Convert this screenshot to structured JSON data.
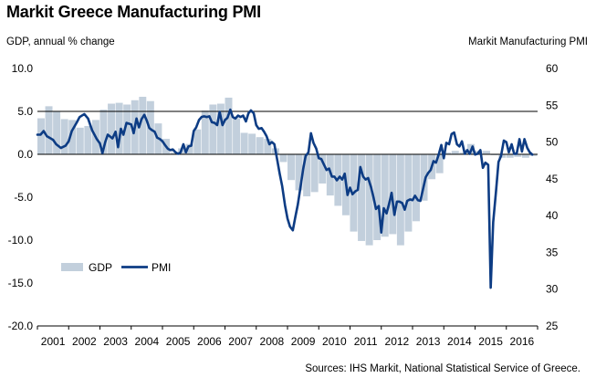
{
  "chart_data": {
    "type": "bar+line",
    "title": "Markit Greece Manufacturing PMI",
    "ylabel_left": "GDP, annual % change",
    "ylabel_right": "Markit Manufacturing PMI",
    "source": "Sources: IHS Markit, National Statistical Service of Greece.",
    "x_range": [
      2001.0,
      2017.0
    ],
    "x_ticks": [
      "2001",
      "2002",
      "2003",
      "2004",
      "2005",
      "2006",
      "2007",
      "2008",
      "2009",
      "2010",
      "2011",
      "2012",
      "2013",
      "2014",
      "2015",
      "2016"
    ],
    "ylim_left": [
      -20,
      10
    ],
    "yticks_left": [
      "10.0",
      "5.0",
      "0.0",
      "-5.0",
      "-10.0",
      "-15.0",
      "-20.0"
    ],
    "ylim_right": [
      25,
      60
    ],
    "yticks_right": [
      "60",
      "55",
      "50",
      "45",
      "40",
      "35",
      "30",
      "25"
    ],
    "grid": "horizontal at GDP 5.0 and 0.0",
    "legend_position": "lower-left",
    "colors": {
      "gdp": "#c2cfdc",
      "pmi": "#0d3c84",
      "grid": "#000000"
    },
    "series": [
      {
        "name": "GDP",
        "style": "bars",
        "axis": "left",
        "points": [
          [
            2001.0,
            4.2
          ],
          [
            2001.25,
            5.6
          ],
          [
            2001.5,
            5.0
          ],
          [
            2001.75,
            4.1
          ],
          [
            2002.0,
            4.0
          ],
          [
            2002.25,
            3.1
          ],
          [
            2002.5,
            3.3
          ],
          [
            2002.75,
            4.0
          ],
          [
            2003.0,
            5.2
          ],
          [
            2003.25,
            5.9
          ],
          [
            2003.5,
            6.0
          ],
          [
            2003.75,
            5.8
          ],
          [
            2004.0,
            6.3
          ],
          [
            2004.25,
            6.7
          ],
          [
            2004.5,
            6.2
          ],
          [
            2004.75,
            3.6
          ],
          [
            2005.0,
            1.8
          ],
          [
            2005.25,
            0.2
          ],
          [
            2005.5,
            0.7
          ],
          [
            2005.75,
            1.2
          ],
          [
            2006.0,
            2.9
          ],
          [
            2006.25,
            5.1
          ],
          [
            2006.5,
            5.8
          ],
          [
            2006.75,
            5.9
          ],
          [
            2007.0,
            6.6
          ],
          [
            2007.25,
            4.2
          ],
          [
            2007.5,
            2.5
          ],
          [
            2007.75,
            2.4
          ],
          [
            2008.0,
            2.0
          ],
          [
            2008.25,
            1.8
          ],
          [
            2008.5,
            0.7
          ],
          [
            2008.75,
            -0.9
          ],
          [
            2009.0,
            -3.0
          ],
          [
            2009.25,
            -4.2
          ],
          [
            2009.5,
            -4.9
          ],
          [
            2009.75,
            -4.4
          ],
          [
            2010.0,
            -3.4
          ],
          [
            2010.25,
            -4.8
          ],
          [
            2010.5,
            -6.0
          ],
          [
            2010.75,
            -7.1
          ],
          [
            2011.0,
            -9.0
          ],
          [
            2011.25,
            -10.1
          ],
          [
            2011.5,
            -10.6
          ],
          [
            2011.75,
            -10.0
          ],
          [
            2012.0,
            -9.6
          ],
          [
            2012.25,
            -9.3
          ],
          [
            2012.5,
            -10.6
          ],
          [
            2012.75,
            -9.0
          ],
          [
            2013.0,
            -7.8
          ],
          [
            2013.25,
            -5.4
          ],
          [
            2013.5,
            -2.9
          ],
          [
            2013.75,
            -2.2
          ],
          [
            2014.0,
            0.2
          ],
          [
            2014.25,
            0.4
          ],
          [
            2014.5,
            0.2
          ],
          [
            2014.75,
            1.2
          ],
          [
            2015.0,
            0.4
          ],
          [
            2015.25,
            0.4
          ],
          [
            2015.5,
            -0.1
          ],
          [
            2015.75,
            -0.4
          ],
          [
            2016.0,
            -0.4
          ],
          [
            2016.25,
            -0.3
          ],
          [
            2016.5,
            -0.4
          ],
          [
            2016.75,
            -0.2
          ]
        ]
      },
      {
        "name": "PMI",
        "style": "line",
        "axis": "right",
        "points": [
          [
            2001.0,
            51.0
          ],
          [
            2001.1,
            51.0
          ],
          [
            2001.2,
            51.5
          ],
          [
            2001.3,
            50.8
          ],
          [
            2001.5,
            50.3
          ],
          [
            2001.6,
            49.7
          ],
          [
            2001.75,
            49.2
          ],
          [
            2001.9,
            49.5
          ],
          [
            2002.0,
            50.1
          ],
          [
            2002.1,
            51.5
          ],
          [
            2002.25,
            52.6
          ],
          [
            2002.35,
            53.4
          ],
          [
            2002.5,
            53.8
          ],
          [
            2002.62,
            53.2
          ],
          [
            2002.75,
            51.6
          ],
          [
            2002.9,
            50.4
          ],
          [
            2003.0,
            49.8
          ],
          [
            2003.08,
            48.5
          ],
          [
            2003.17,
            50.0
          ],
          [
            2003.25,
            51.0
          ],
          [
            2003.4,
            50.5
          ],
          [
            2003.5,
            51.4
          ],
          [
            2003.58,
            49.3
          ],
          [
            2003.67,
            51.8
          ],
          [
            2003.75,
            51.0
          ],
          [
            2003.85,
            52.6
          ],
          [
            2004.0,
            52.4
          ],
          [
            2004.08,
            51.2
          ],
          [
            2004.17,
            53.2
          ],
          [
            2004.25,
            52.0
          ],
          [
            2004.33,
            53.1
          ],
          [
            2004.42,
            53.7
          ],
          [
            2004.5,
            52.9
          ],
          [
            2004.58,
            51.9
          ],
          [
            2004.67,
            51.6
          ],
          [
            2004.75,
            51.4
          ],
          [
            2004.83,
            50.6
          ],
          [
            2004.92,
            50.4
          ],
          [
            2005.0,
            50.1
          ],
          [
            2005.08,
            49.6
          ],
          [
            2005.17,
            49.1
          ],
          [
            2005.25,
            48.9
          ],
          [
            2005.33,
            49.0
          ],
          [
            2005.42,
            48.6
          ],
          [
            2005.5,
            48.4
          ],
          [
            2005.58,
            48.6
          ],
          [
            2005.67,
            49.7
          ],
          [
            2005.75,
            48.6
          ],
          [
            2005.83,
            49.4
          ],
          [
            2005.92,
            49.5
          ],
          [
            2006.0,
            51.5
          ],
          [
            2006.08,
            52.0
          ],
          [
            2006.17,
            53.0
          ],
          [
            2006.25,
            53.4
          ],
          [
            2006.33,
            53.5
          ],
          [
            2006.42,
            53.4
          ],
          [
            2006.5,
            53.5
          ],
          [
            2006.58,
            52.7
          ],
          [
            2006.67,
            52.6
          ],
          [
            2006.75,
            52.3
          ],
          [
            2006.83,
            54.1
          ],
          [
            2006.92,
            52.3
          ],
          [
            2007.0,
            53.0
          ],
          [
            2007.08,
            53.3
          ],
          [
            2007.17,
            54.4
          ],
          [
            2007.25,
            53.4
          ],
          [
            2007.33,
            53.2
          ],
          [
            2007.42,
            53.6
          ],
          [
            2007.5,
            53.4
          ],
          [
            2007.58,
            53.6
          ],
          [
            2007.67,
            52.8
          ],
          [
            2007.75,
            53.9
          ],
          [
            2007.83,
            54.3
          ],
          [
            2007.92,
            53.9
          ],
          [
            2008.0,
            52.3
          ],
          [
            2008.08,
            51.8
          ],
          [
            2008.17,
            51.9
          ],
          [
            2008.25,
            51.4
          ],
          [
            2008.33,
            50.8
          ],
          [
            2008.42,
            49.7
          ],
          [
            2008.5,
            50.0
          ],
          [
            2008.58,
            49.7
          ],
          [
            2008.67,
            47.6
          ],
          [
            2008.75,
            45.7
          ],
          [
            2008.83,
            44.0
          ],
          [
            2008.92,
            41.4
          ],
          [
            2009.0,
            39.6
          ],
          [
            2009.08,
            38.5
          ],
          [
            2009.17,
            38.0
          ],
          [
            2009.25,
            39.8
          ],
          [
            2009.33,
            41.5
          ],
          [
            2009.42,
            44.0
          ],
          [
            2009.5,
            46.3
          ],
          [
            2009.58,
            48.1
          ],
          [
            2009.67,
            48.6
          ],
          [
            2009.75,
            51.2
          ],
          [
            2009.83,
            49.9
          ],
          [
            2009.92,
            49.1
          ],
          [
            2010.0,
            47.8
          ],
          [
            2010.08,
            47.7
          ],
          [
            2010.17,
            46.9
          ],
          [
            2010.25,
            46.2
          ],
          [
            2010.33,
            46.4
          ],
          [
            2010.42,
            45.3
          ],
          [
            2010.5,
            45.3
          ],
          [
            2010.58,
            44.8
          ],
          [
            2010.67,
            45.3
          ],
          [
            2010.75,
            44.9
          ],
          [
            2010.83,
            45.7
          ],
          [
            2010.92,
            42.8
          ],
          [
            2011.0,
            43.8
          ],
          [
            2011.08,
            42.9
          ],
          [
            2011.17,
            43.3
          ],
          [
            2011.25,
            43.5
          ],
          [
            2011.33,
            46.6
          ],
          [
            2011.42,
            45.3
          ],
          [
            2011.5,
            44.9
          ],
          [
            2011.58,
            45.1
          ],
          [
            2011.67,
            43.9
          ],
          [
            2011.75,
            42.5
          ],
          [
            2011.83,
            40.9
          ],
          [
            2011.92,
            41.3
          ],
          [
            2012.0,
            37.7
          ],
          [
            2012.08,
            41.0
          ],
          [
            2012.17,
            40.3
          ],
          [
            2012.25,
            41.6
          ],
          [
            2012.33,
            43.1
          ],
          [
            2012.42,
            40.1
          ],
          [
            2012.5,
            41.9
          ],
          [
            2012.58,
            41.9
          ],
          [
            2012.67,
            41.7
          ],
          [
            2012.75,
            40.8
          ],
          [
            2012.83,
            42.0
          ],
          [
            2012.92,
            42.2
          ],
          [
            2013.0,
            42.1
          ],
          [
            2013.08,
            42.7
          ],
          [
            2013.17,
            42.1
          ],
          [
            2013.25,
            42.0
          ],
          [
            2013.33,
            43.5
          ],
          [
            2013.42,
            45.2
          ],
          [
            2013.5,
            45.8
          ],
          [
            2013.58,
            46.2
          ],
          [
            2013.67,
            47.4
          ],
          [
            2013.75,
            47.2
          ],
          [
            2013.83,
            48.2
          ],
          [
            2013.92,
            49.6
          ],
          [
            2014.0,
            47.8
          ],
          [
            2014.08,
            49.9
          ],
          [
            2014.17,
            49.7
          ],
          [
            2014.25,
            51.1
          ],
          [
            2014.33,
            51.3
          ],
          [
            2014.42,
            49.7
          ],
          [
            2014.5,
            49.4
          ],
          [
            2014.58,
            50.1
          ],
          [
            2014.67,
            48.4
          ],
          [
            2014.75,
            48.9
          ],
          [
            2014.83,
            48.4
          ],
          [
            2014.92,
            49.4
          ],
          [
            2015.0,
            48.3
          ],
          [
            2015.08,
            48.4
          ],
          [
            2015.17,
            48.9
          ],
          [
            2015.25,
            46.5
          ],
          [
            2015.33,
            47.2
          ],
          [
            2015.42,
            46.9
          ],
          [
            2015.5,
            30.2
          ],
          [
            2015.58,
            39.1
          ],
          [
            2015.67,
            43.3
          ],
          [
            2015.75,
            47.3
          ],
          [
            2015.83,
            48.1
          ],
          [
            2015.92,
            50.2
          ],
          [
            2016.0,
            50.0
          ],
          [
            2016.08,
            48.6
          ],
          [
            2016.17,
            49.7
          ],
          [
            2016.25,
            48.4
          ],
          [
            2016.33,
            48.4
          ],
          [
            2016.42,
            50.4
          ],
          [
            2016.5,
            48.7
          ],
          [
            2016.58,
            50.4
          ],
          [
            2016.67,
            49.2
          ],
          [
            2016.75,
            48.6
          ],
          [
            2016.83,
            48.3
          ]
        ]
      }
    ]
  }
}
